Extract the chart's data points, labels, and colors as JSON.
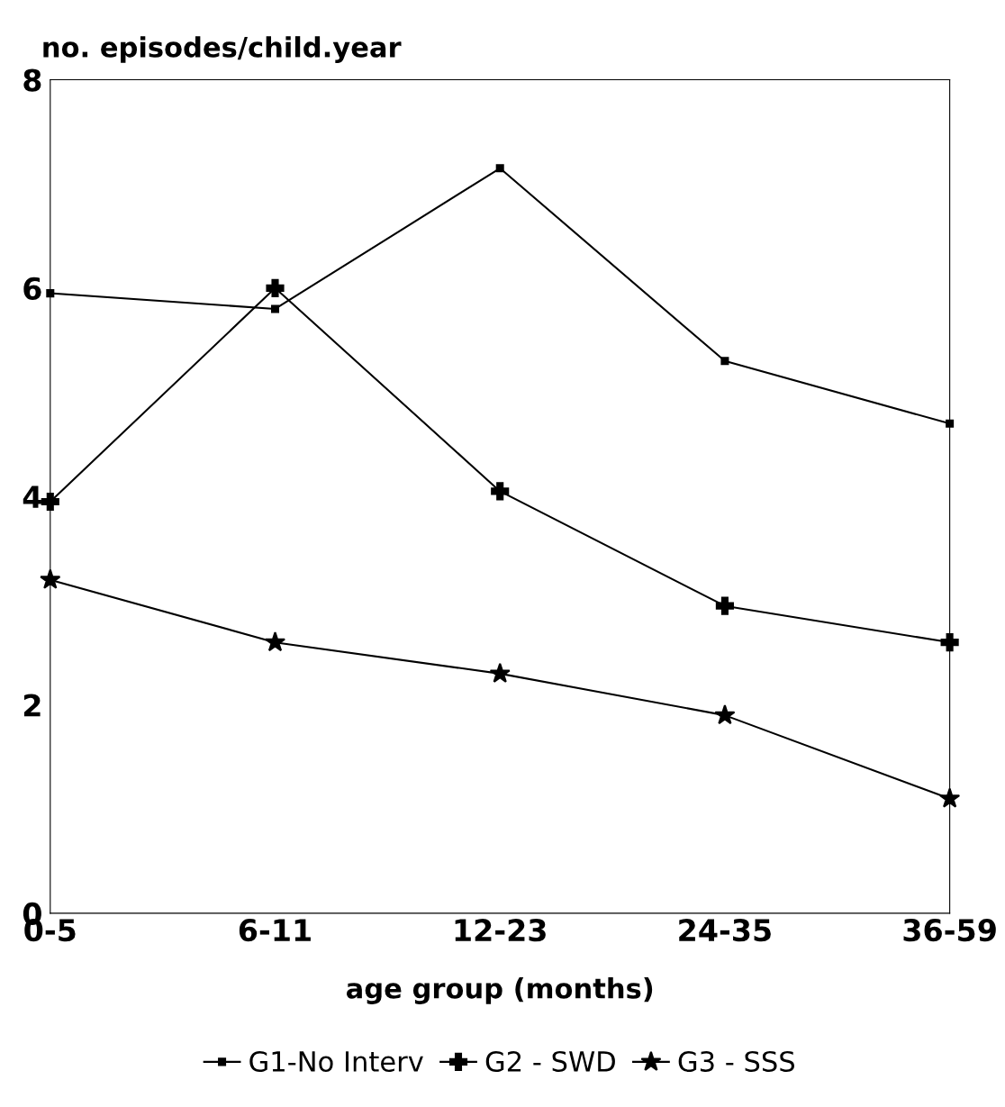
{
  "chart_data": {
    "type": "line",
    "ylabel": "no. episodes/child.year",
    "xlabel": "age group (months)",
    "categories": [
      "0-5",
      "6-11",
      "12-23",
      "24-35",
      "36-59"
    ],
    "series": [
      {
        "name": "G1-No Interv",
        "color": "#000000",
        "marker": "square",
        "values": [
          5.95,
          5.8,
          7.15,
          5.3,
          4.7
        ]
      },
      {
        "name": "G2 - SWD",
        "color": "#000000",
        "marker": "cross",
        "values": [
          3.95,
          6.0,
          4.05,
          2.95,
          2.6
        ]
      },
      {
        "name": "G3 - SSS",
        "color": "#000000",
        "marker": "star",
        "values": [
          3.2,
          2.6,
          2.3,
          1.9,
          1.1
        ]
      }
    ],
    "ylim": [
      0,
      8
    ],
    "yticks": [
      0,
      2,
      4,
      6,
      8
    ],
    "grid": false,
    "legend": "bottom",
    "line_style": "solid"
  }
}
